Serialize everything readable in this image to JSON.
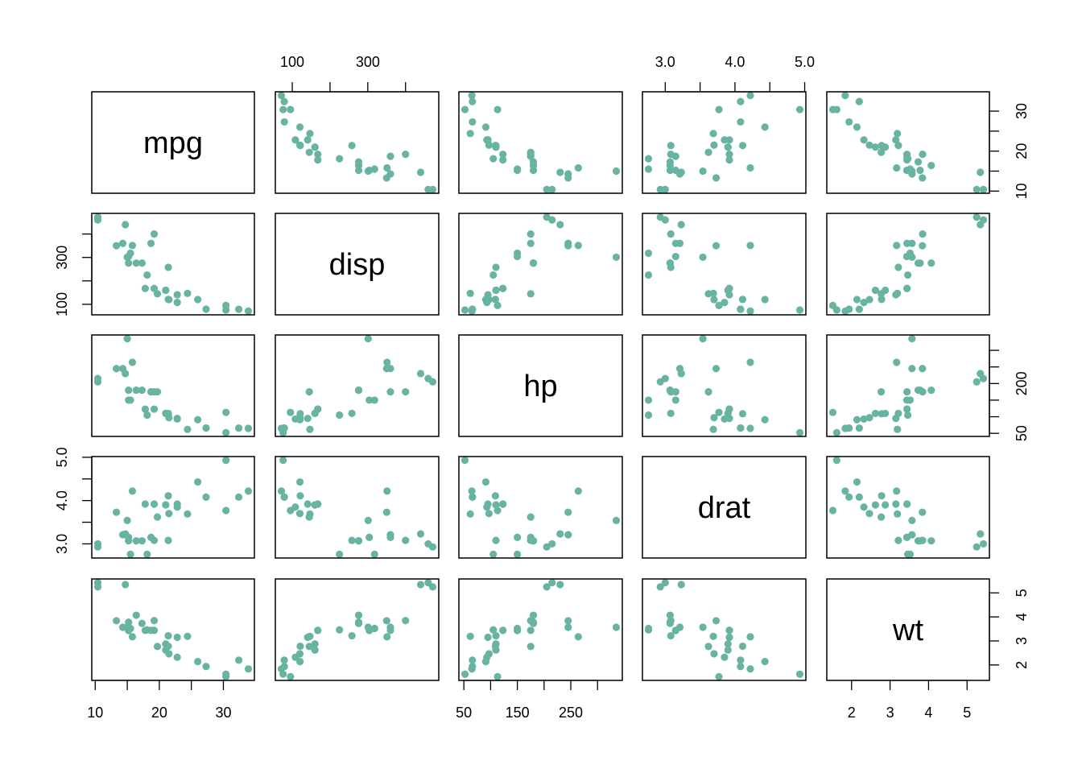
{
  "chart_data": {
    "type": "scatter-matrix",
    "point_color": "#69b3a2",
    "variables": [
      "mpg",
      "disp",
      "hp",
      "drat",
      "wt"
    ],
    "axes": {
      "mpg": {
        "ticks": [
          10,
          15,
          20,
          25,
          30
        ],
        "labels": [
          {
            "v": 10,
            "t": "10"
          },
          {
            "v": 20,
            "t": "20"
          },
          {
            "v": 30,
            "t": "30"
          }
        ]
      },
      "disp": {
        "ticks": [
          100,
          200,
          300,
          400
        ],
        "labels": [
          {
            "v": 100,
            "t": "100"
          },
          {
            "v": 300,
            "t": "300"
          }
        ]
      },
      "hp": {
        "ticks": [
          50,
          100,
          150,
          200,
          250,
          300
        ],
        "labels": [
          {
            "v": 50,
            "t": "50"
          },
          {
            "v": 150,
            "t": "150"
          },
          {
            "v": 250,
            "t": "250"
          }
        ],
        "side_labels": [
          {
            "v": 50,
            "t": "50"
          },
          {
            "v": 200,
            "t": "200"
          }
        ]
      },
      "drat": {
        "ticks": [
          3.0,
          3.5,
          4.0,
          4.5,
          5.0
        ],
        "labels": [
          {
            "v": 3.0,
            "t": "3.0"
          },
          {
            "v": 4.0,
            "t": "4.0"
          },
          {
            "v": 5.0,
            "t": "5.0"
          }
        ]
      },
      "wt": {
        "ticks": [
          2,
          3,
          4,
          5
        ],
        "labels": [
          {
            "v": 2,
            "t": "2"
          },
          {
            "v": 3,
            "t": "3"
          },
          {
            "v": 4,
            "t": "4"
          },
          {
            "v": 5,
            "t": "5"
          }
        ]
      }
    },
    "data": {
      "mpg": [
        21.0,
        21.0,
        22.8,
        21.4,
        18.7,
        18.1,
        14.3,
        24.4,
        22.8,
        19.2,
        17.8,
        16.4,
        17.3,
        15.2,
        10.4,
        10.4,
        14.7,
        32.4,
        30.4,
        33.9,
        21.5,
        15.5,
        15.2,
        13.3,
        19.2,
        27.3,
        26.0,
        30.4,
        15.8,
        19.7,
        15.0,
        21.4
      ],
      "disp": [
        160,
        160,
        108,
        258,
        360,
        225,
        360,
        146.7,
        140.8,
        167.6,
        167.6,
        275.8,
        275.8,
        275.8,
        472,
        460,
        440,
        78.7,
        75.7,
        71.1,
        120.1,
        318,
        304,
        350,
        400,
        79,
        120.3,
        95.1,
        351,
        145,
        301,
        121
      ],
      "hp": [
        110,
        110,
        93,
        110,
        175,
        105,
        245,
        62,
        95,
        123,
        123,
        180,
        180,
        180,
        205,
        215,
        230,
        66,
        52,
        65,
        97,
        150,
        150,
        245,
        175,
        66,
        91,
        113,
        264,
        175,
        335,
        109
      ],
      "drat": [
        3.9,
        3.9,
        3.85,
        3.08,
        3.15,
        2.76,
        3.21,
        3.69,
        3.92,
        3.92,
        3.92,
        3.07,
        3.07,
        3.07,
        2.93,
        3.0,
        3.23,
        4.08,
        4.93,
        4.22,
        3.7,
        2.76,
        3.15,
        3.73,
        3.08,
        4.08,
        4.43,
        3.77,
        4.22,
        3.62,
        3.54,
        4.11
      ],
      "wt": [
        2.62,
        2.875,
        2.32,
        3.215,
        3.44,
        3.46,
        3.57,
        3.19,
        3.15,
        3.44,
        3.44,
        4.07,
        3.73,
        3.78,
        5.25,
        5.424,
        5.345,
        2.2,
        1.615,
        1.835,
        2.465,
        3.52,
        3.435,
        3.84,
        3.845,
        1.935,
        2.14,
        1.513,
        3.17,
        2.77,
        3.57,
        2.78
      ]
    }
  }
}
